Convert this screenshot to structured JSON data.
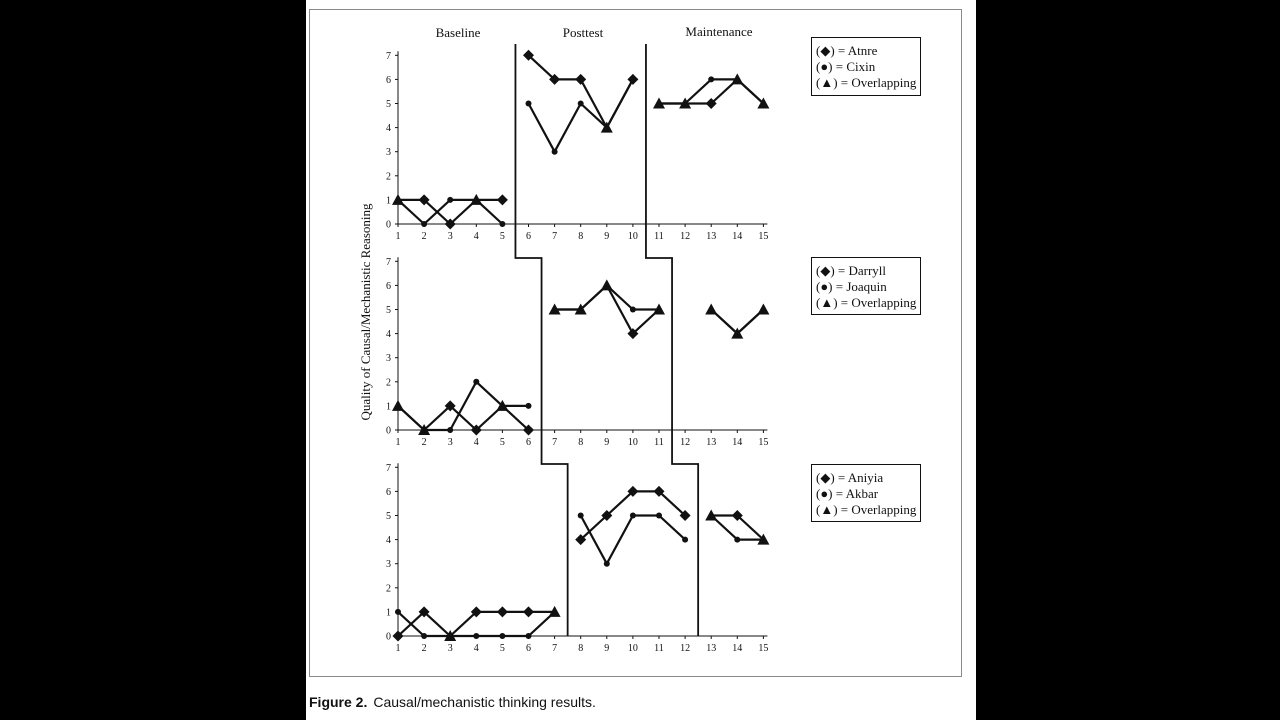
{
  "figure": {
    "label": "Figure 2.",
    "caption": "Causal/mechanistic thinking results."
  },
  "phases": {
    "baseline": "Baseline",
    "posttest": "Posttest",
    "maintenance": "Maintenance"
  },
  "y_axis_label": "Quality of Causal/Mechanistic Reasoning",
  "legend_symbols": {
    "diamond": "(◆) = ",
    "circle": "(●) = ",
    "triangle": "(▲) = "
  },
  "colors": {
    "line": "#111111",
    "background": "#ffffff",
    "frame": "#8a8a8a"
  },
  "chart_data": [
    {
      "type": "line",
      "panel": "top",
      "x": [
        1,
        2,
        3,
        4,
        5,
        6,
        7,
        8,
        9,
        10,
        11,
        12,
        13,
        14,
        15
      ],
      "ylim": [
        0,
        7
      ],
      "yticks": [
        "0",
        "1",
        "2",
        "3",
        "4",
        "5",
        "6",
        "7"
      ],
      "xticks": [
        "1",
        "2",
        "3",
        "4",
        "5",
        "6",
        "7",
        "8",
        "9",
        "10",
        "11",
        "12",
        "13",
        "14",
        "15"
      ],
      "phase_change_after": [
        5.5,
        10.5
      ],
      "legend": [
        "Atnre",
        "Cixin",
        "Overlapping"
      ],
      "series": [
        {
          "name": "Atnre",
          "marker": "diamond",
          "segments": [
            [
              [
                1,
                1
              ],
              [
                2,
                1
              ],
              [
                3,
                0
              ],
              [
                4,
                1
              ],
              [
                5,
                1
              ]
            ],
            [
              [
                6,
                7
              ],
              [
                7,
                6
              ],
              [
                8,
                6
              ],
              [
                9,
                4
              ],
              [
                10,
                6
              ]
            ],
            [
              [
                11,
                5
              ],
              [
                12,
                5
              ],
              [
                13,
                5
              ],
              [
                14,
                6
              ],
              [
                15,
                5
              ]
            ]
          ]
        },
        {
          "name": "Cixin",
          "marker": "circle",
          "segments": [
            [
              [
                1,
                1
              ],
              [
                2,
                0
              ],
              [
                3,
                1
              ],
              [
                4,
                1
              ],
              [
                5,
                0
              ]
            ],
            [
              [
                6,
                5
              ],
              [
                7,
                3
              ],
              [
                8,
                5
              ],
              [
                9,
                4
              ],
              [
                10,
                6
              ]
            ],
            [
              [
                11,
                5
              ],
              [
                12,
                5
              ],
              [
                13,
                6
              ],
              [
                14,
                6
              ],
              [
                15,
                5
              ]
            ]
          ]
        }
      ],
      "overlapping": [
        [
          1,
          1
        ],
        [
          4,
          1
        ],
        [
          9,
          4
        ],
        [
          11,
          5
        ],
        [
          12,
          5
        ],
        [
          14,
          6
        ],
        [
          15,
          5
        ]
      ]
    },
    {
      "type": "line",
      "panel": "middle",
      "x": [
        1,
        2,
        3,
        4,
        5,
        6,
        7,
        8,
        9,
        10,
        11,
        12,
        13,
        14,
        15
      ],
      "ylim": [
        0,
        7
      ],
      "yticks": [
        "0",
        "1",
        "2",
        "3",
        "4",
        "5",
        "6",
        "7"
      ],
      "xticks": [
        "1",
        "2",
        "3",
        "4",
        "5",
        "6",
        "7",
        "8",
        "9",
        "10",
        "11",
        "12",
        "13",
        "14",
        "15"
      ],
      "phase_change_after": [
        6.5,
        11.5
      ],
      "legend": [
        "Darryll",
        "Joaquin",
        "Overlapping"
      ],
      "series": [
        {
          "name": "Darryll",
          "marker": "diamond",
          "segments": [
            [
              [
                1,
                1
              ],
              [
                2,
                0
              ],
              [
                3,
                1
              ],
              [
                4,
                0
              ],
              [
                5,
                1
              ],
              [
                6,
                0
              ]
            ],
            [
              [
                7,
                5
              ],
              [
                8,
                5
              ],
              [
                9,
                6
              ],
              [
                10,
                4
              ],
              [
                11,
                5
              ]
            ],
            [
              [
                13,
                5
              ],
              [
                14,
                4
              ],
              [
                15,
                5
              ]
            ]
          ]
        },
        {
          "name": "Joaquin",
          "marker": "circle",
          "segments": [
            [
              [
                1,
                1
              ],
              [
                2,
                0
              ],
              [
                3,
                0
              ],
              [
                4,
                2
              ],
              [
                5,
                1
              ],
              [
                6,
                1
              ]
            ],
            [
              [
                7,
                5
              ],
              [
                8,
                5
              ],
              [
                9,
                6
              ],
              [
                10,
                5
              ],
              [
                11,
                5
              ]
            ],
            [
              [
                13,
                5
              ],
              [
                14,
                4
              ],
              [
                15,
                5
              ]
            ]
          ]
        }
      ],
      "overlapping": [
        [
          1,
          1
        ],
        [
          2,
          0
        ],
        [
          5,
          1
        ],
        [
          7,
          5
        ],
        [
          8,
          5
        ],
        [
          9,
          6
        ],
        [
          11,
          5
        ],
        [
          13,
          5
        ],
        [
          14,
          4
        ],
        [
          15,
          5
        ]
      ]
    },
    {
      "type": "line",
      "panel": "bottom",
      "x": [
        1,
        2,
        3,
        4,
        5,
        6,
        7,
        8,
        9,
        10,
        11,
        12,
        13,
        14,
        15
      ],
      "ylim": [
        0,
        7
      ],
      "yticks": [
        "0",
        "1",
        "2",
        "3",
        "4",
        "5",
        "6",
        "7"
      ],
      "xticks": [
        "1",
        "2",
        "3",
        "4",
        "5",
        "6",
        "7",
        "8",
        "9",
        "10",
        "11",
        "12",
        "13",
        "14",
        "15"
      ],
      "phase_change_after": [
        7.5,
        12.5
      ],
      "legend": [
        "Aniyia",
        "Akbar",
        "Overlapping"
      ],
      "series": [
        {
          "name": "Aniyia",
          "marker": "diamond",
          "segments": [
            [
              [
                1,
                0
              ],
              [
                2,
                1
              ],
              [
                3,
                0
              ],
              [
                4,
                1
              ],
              [
                5,
                1
              ],
              [
                6,
                1
              ],
              [
                7,
                1
              ]
            ],
            [
              [
                8,
                4
              ],
              [
                9,
                5
              ],
              [
                10,
                6
              ],
              [
                11,
                6
              ],
              [
                12,
                5
              ]
            ],
            [
              [
                13,
                5
              ],
              [
                14,
                5
              ],
              [
                15,
                4
              ]
            ]
          ]
        },
        {
          "name": "Akbar",
          "marker": "circle",
          "segments": [
            [
              [
                1,
                1
              ],
              [
                2,
                0
              ],
              [
                3,
                0
              ],
              [
                4,
                0
              ],
              [
                5,
                0
              ],
              [
                6,
                0
              ],
              [
                7,
                1
              ]
            ],
            [
              [
                8,
                5
              ],
              [
                9,
                3
              ],
              [
                10,
                5
              ],
              [
                11,
                5
              ],
              [
                12,
                4
              ]
            ],
            [
              [
                13,
                5
              ],
              [
                14,
                4
              ],
              [
                15,
                4
              ]
            ]
          ]
        }
      ],
      "overlapping": [
        [
          3,
          0
        ],
        [
          7,
          1
        ],
        [
          13,
          5
        ],
        [
          15,
          4
        ]
      ]
    }
  ]
}
